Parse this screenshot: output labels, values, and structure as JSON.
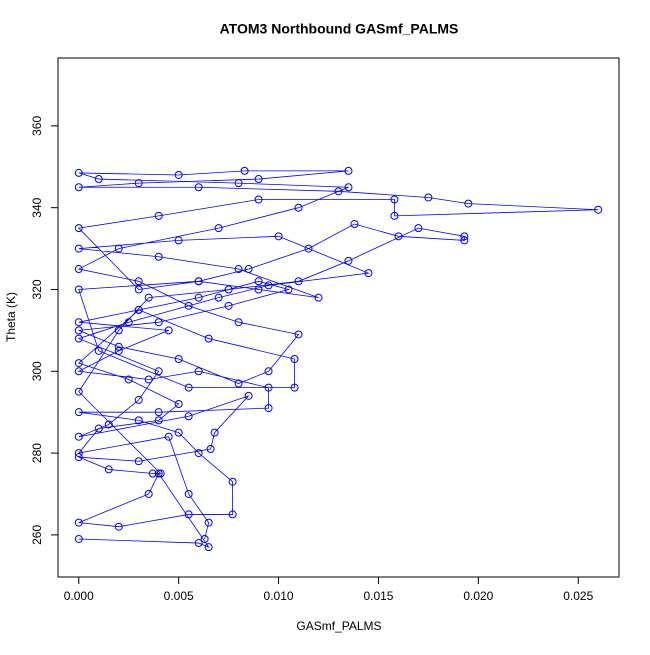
{
  "chart_data": {
    "type": "line",
    "marker": "circle",
    "title": "ATOM3 Northbound GASmf_PALMS",
    "x_label": "GASmf_PALMS",
    "y_label": "Theta (K)",
    "xlim": [
      -0.00104,
      0.02704
    ],
    "ylim": [
      249.7,
      376.6
    ],
    "xticks": [
      {
        "value": 0,
        "label": "0.000"
      },
      0.005,
      {
        "value": 0.01,
        "label": "0.010"
      },
      0.015,
      {
        "value": 0.02,
        "label": "0.020"
      },
      0.025
    ],
    "yticks": [
      260,
      280,
      300,
      320,
      340,
      360
    ],
    "series": [
      {
        "color": "#0000ff",
        "x": [
          0,
          0.006,
          0.0065,
          0.004,
          0.0035,
          0,
          0.002,
          0.0055,
          0.0077,
          0.0077,
          0.006,
          0.005,
          0.003,
          0,
          0.004,
          0.0095,
          0.0095,
          0.006,
          0.0035,
          0,
          0.002,
          0.0045,
          0,
          0.003,
          0.0065,
          0.0108,
          0.0108,
          0.0055,
          0.001,
          0,
          0.006,
          0.009,
          0.012,
          0.008,
          0.004,
          0,
          0.005,
          0.01,
          0.0145,
          0.0095,
          0.007,
          0.0025,
          0,
          0.004,
          0.003,
          0.0015,
          0,
          0.0055,
          0.0085,
          0.0068,
          0.0066,
          0.003,
          0,
          0.0015,
          0.0037,
          0.0041,
          0,
          0.002,
          0.0035,
          0.0075,
          0.011,
          0.0135,
          0.017,
          0.0193,
          0.0193,
          0.016,
          0.0138,
          0.0115,
          0.0085,
          0.006,
          0.003,
          0,
          0.004,
          0.009,
          0.0158,
          0.0158,
          0.026,
          0.0195,
          0.0175,
          0.013,
          0.006,
          0,
          0.003,
          0.009,
          0.0135,
          0.0083,
          0.005,
          0,
          0.001,
          0.008,
          0.0135,
          0.011,
          0.007,
          0.002,
          0,
          0.003,
          0.0055,
          0.008,
          0.011,
          0.0095,
          0.008,
          0.005,
          0.002,
          0,
          0.004,
          0.0075,
          0.0105,
          0.009,
          0.006,
          0.003,
          0,
          0.0025,
          0.005,
          0.004,
          0.001,
          0,
          0.0045,
          0.0055,
          0.0065,
          0.0063
        ],
        "values": [
          259,
          258,
          257,
          275,
          270,
          263,
          262,
          265,
          265,
          273,
          280,
          285,
          288,
          290,
          290,
          291,
          296,
          300,
          298,
          300,
          305,
          310,
          312,
          315,
          308,
          303,
          296,
          296,
          305,
          320,
          322,
          320,
          318,
          325,
          328,
          330,
          332,
          333,
          324,
          321,
          318,
          312,
          308,
          300,
          293,
          287,
          284,
          289,
          294,
          285,
          281,
          278,
          279,
          276,
          275,
          275,
          295,
          310,
          318,
          320,
          322,
          327,
          335,
          333,
          332,
          333,
          336,
          330,
          325,
          322,
          320,
          335,
          338,
          342,
          342,
          338,
          339.5,
          341,
          342.5,
          344,
          345,
          345,
          346,
          347,
          349,
          349,
          348,
          348.5,
          347,
          346,
          345,
          340,
          335,
          330,
          325,
          322,
          316,
          312,
          309,
          300,
          297,
          303,
          306,
          310,
          312,
          316,
          320,
          322,
          318,
          315,
          302,
          298,
          292,
          288,
          286,
          280,
          284,
          270,
          263,
          259
        ]
      }
    ]
  }
}
